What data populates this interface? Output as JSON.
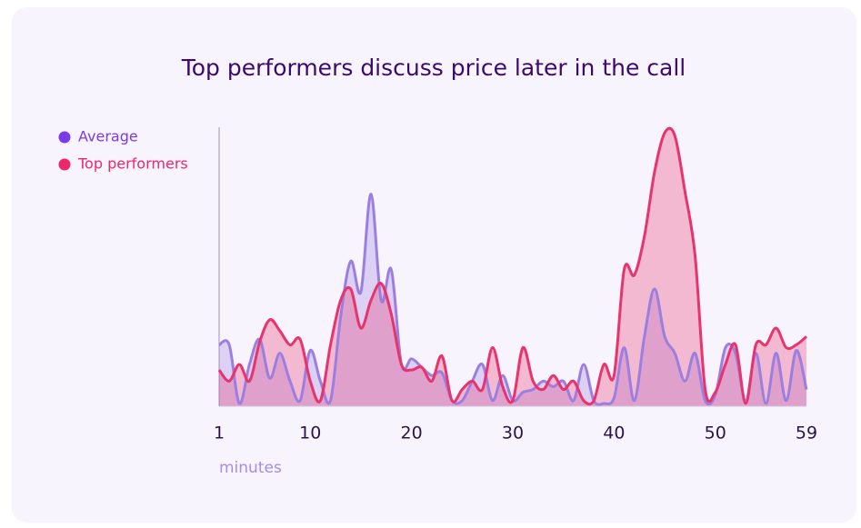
{
  "chart_data": {
    "type": "area",
    "title": "Top performers discuss price later in the call",
    "x_label": "minutes",
    "x": [
      1,
      2,
      3,
      4,
      5,
      6,
      7,
      8,
      9,
      10,
      11,
      12,
      13,
      14,
      15,
      16,
      17,
      18,
      19,
      20,
      21,
      22,
      23,
      24,
      25,
      26,
      27,
      28,
      29,
      30,
      31,
      32,
      33,
      34,
      35,
      36,
      37,
      38,
      39,
      40,
      41,
      42,
      43,
      44,
      45,
      46,
      47,
      48,
      49,
      50,
      51,
      52,
      53,
      54,
      55,
      56,
      57,
      58,
      59
    ],
    "xlim": [
      1,
      59
    ],
    "xticks": [
      1,
      10,
      20,
      30,
      40,
      50,
      59
    ],
    "ylim": [
      0,
      100
    ],
    "legend": "top-left",
    "series": [
      {
        "name": "Average",
        "color": "#9b7fe0",
        "legend_color": "#7c3aed",
        "values": [
          22,
          22,
          1,
          15,
          24,
          10,
          19,
          9,
          2,
          20,
          9,
          2,
          32,
          52,
          41,
          76,
          38,
          49,
          15,
          17,
          14,
          11,
          12,
          2,
          2,
          9,
          15,
          2,
          11,
          2,
          5,
          6,
          9,
          7,
          9,
          2,
          15,
          2,
          1,
          3,
          21,
          2,
          25,
          42,
          25,
          19,
          9,
          19,
          2,
          4,
          21,
          19,
          2,
          19,
          1,
          19,
          2,
          20,
          6
        ]
      },
      {
        "name": "Top performers",
        "color": "#e8336d",
        "legend_color": "#f0266a",
        "values": [
          13,
          9,
          15,
          9,
          23,
          31,
          27,
          22,
          24,
          9,
          2,
          22,
          38,
          42,
          28,
          38,
          44,
          33,
          15,
          13,
          14,
          9,
          18,
          2,
          6,
          9,
          6,
          21,
          7,
          2,
          21,
          9,
          6,
          11,
          6,
          9,
          2,
          2,
          15,
          11,
          49,
          47,
          61,
          84,
          98,
          97,
          77,
          54,
          6,
          5,
          15,
          22,
          1,
          22,
          22,
          28,
          21,
          22,
          25
        ]
      }
    ]
  }
}
